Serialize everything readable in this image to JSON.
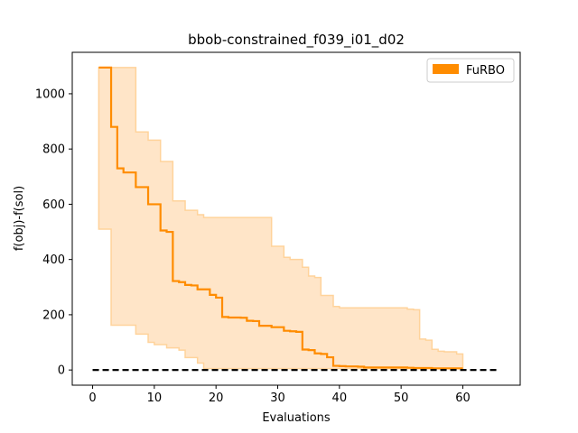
{
  "chart_data": {
    "type": "line",
    "title": "bbob-constrained_f039_i01_d02",
    "xlabel": "Evaluations",
    "ylabel": "f(obj)-f(sol)",
    "xlim": [
      -3.3,
      69.3
    ],
    "ylim": [
      -55,
      1150
    ],
    "xticks": [
      0,
      10,
      20,
      30,
      40,
      50,
      60
    ],
    "yticks": [
      0,
      200,
      400,
      600,
      800,
      1000
    ],
    "grid": false,
    "legend": {
      "position": "top-right",
      "entries": [
        "FuRBO"
      ]
    },
    "colors": {
      "median": "#ff8c00",
      "band": "#ffe5c8",
      "band_edge": "#ffd39b",
      "reference": "#000000"
    },
    "series": [
      {
        "name": "FuRBO",
        "x": [
          1,
          2,
          3,
          4,
          5,
          6,
          7,
          8,
          9,
          10,
          11,
          12,
          13,
          14,
          15,
          16,
          17,
          18,
          19,
          20,
          21,
          22,
          23,
          24,
          25,
          26,
          27,
          28,
          29,
          30,
          31,
          32,
          33,
          34,
          35,
          36,
          37,
          38,
          39,
          40,
          41,
          42,
          43,
          44,
          45,
          46,
          47,
          48,
          49,
          50,
          51,
          52,
          53,
          54,
          55,
          56,
          57,
          58,
          59,
          60
        ],
        "median": [
          1095,
          1095,
          880,
          730,
          715,
          715,
          662,
          662,
          600,
          600,
          505,
          500,
          322,
          318,
          308,
          306,
          292,
          292,
          272,
          262,
          192,
          190,
          190,
          189,
          178,
          177,
          160,
          160,
          155,
          155,
          142,
          140,
          138,
          74,
          72,
          60,
          58,
          46,
          15,
          14,
          13,
          13,
          12,
          9,
          9,
          9,
          9,
          9,
          9,
          9,
          8,
          7,
          7,
          7,
          6,
          6,
          6,
          6,
          6,
          6
        ],
        "upper": [
          1095,
          1095,
          1095,
          1095,
          1095,
          1095,
          862,
          862,
          832,
          832,
          755,
          755,
          612,
          612,
          578,
          578,
          562,
          552,
          552,
          552,
          552,
          552,
          552,
          552,
          552,
          552,
          552,
          552,
          448,
          448,
          408,
          400,
          400,
          372,
          340,
          335,
          270,
          270,
          230,
          225,
          225,
          225,
          225,
          225,
          225,
          225,
          225,
          225,
          225,
          225,
          220,
          218,
          112,
          108,
          75,
          68,
          66,
          66,
          58,
          58
        ],
        "lower": [
          510,
          510,
          162,
          162,
          162,
          162,
          130,
          130,
          100,
          92,
          92,
          80,
          80,
          72,
          45,
          45,
          25,
          5,
          5,
          5,
          5,
          5,
          5,
          5,
          5,
          5,
          5,
          5,
          5,
          5,
          5,
          5,
          5,
          5,
          5,
          5,
          5,
          5,
          5,
          5,
          5,
          5,
          5,
          5,
          5,
          5,
          5,
          5,
          5,
          5,
          5,
          5,
          5,
          5,
          5,
          5,
          5,
          5,
          5,
          5
        ]
      }
    ],
    "reference_line": {
      "y": 0,
      "x": [
        0,
        66
      ]
    }
  }
}
